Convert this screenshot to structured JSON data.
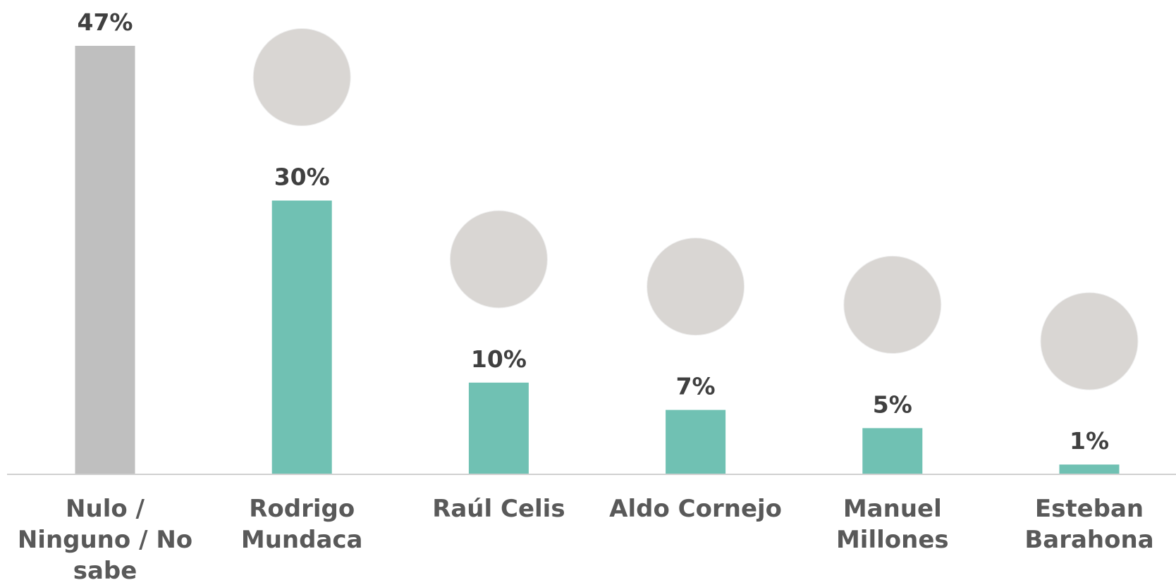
{
  "chart_data": {
    "type": "bar",
    "categories": [
      "Nulo / Ninguno / No sabe",
      "Rodrigo Mundaca",
      "Raúl Celis",
      "Aldo Cornejo",
      "Manuel Millones",
      "Esteban Barahona"
    ],
    "values": [
      47,
      30,
      10,
      7,
      5,
      1
    ],
    "value_labels": [
      "47%",
      "30%",
      "10%",
      "7%",
      "5%",
      "1%"
    ],
    "colors": [
      "#bfbfbf",
      "#70c1b3",
      "#70c1b3",
      "#70c1b3",
      "#70c1b3",
      "#70c1b3"
    ]
  }
}
